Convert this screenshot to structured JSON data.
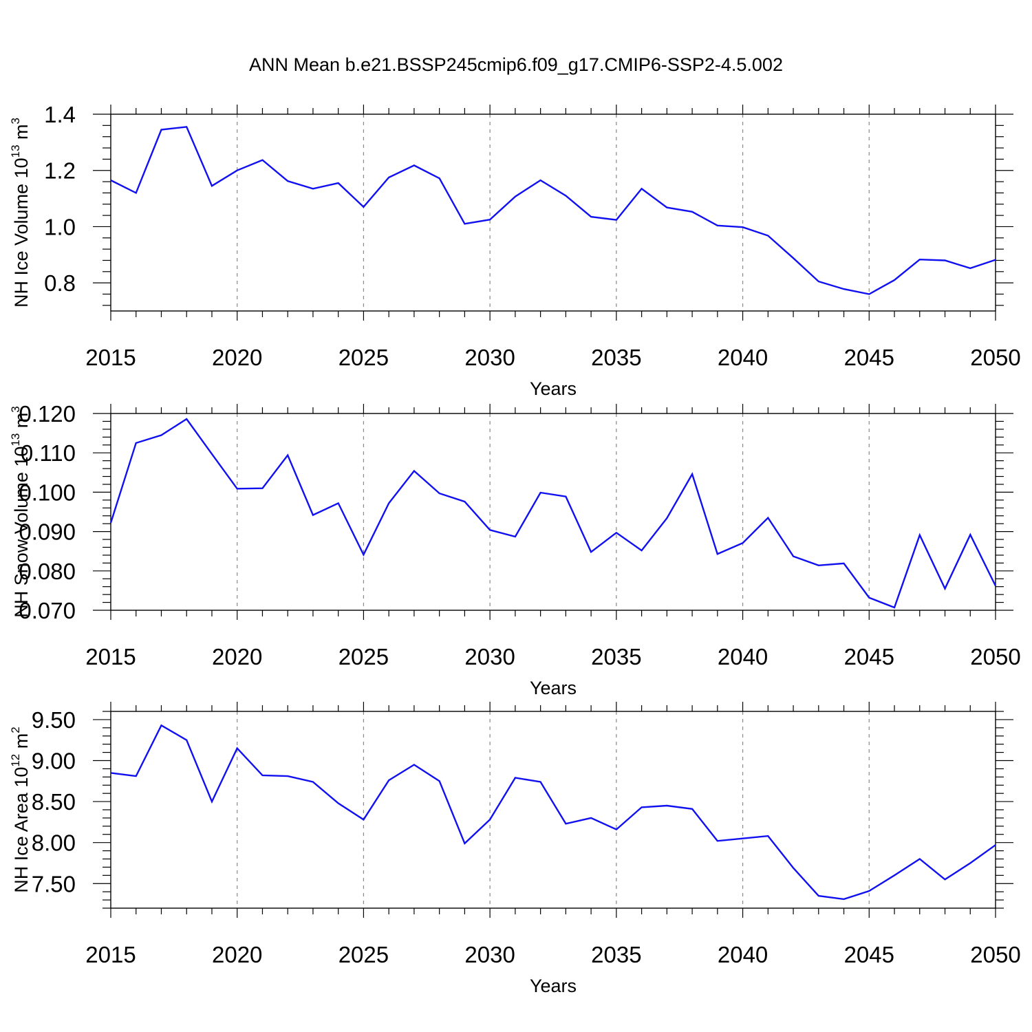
{
  "title": "ANN Mean b.e21.BSSP245cmip6.f09_g17.CMIP6-SSP2-4.5.002",
  "colors": {
    "line": "#1010f0",
    "axes": "#000000",
    "grid": "#888888"
  },
  "chart_data": [
    {
      "type": "line",
      "ylabel": "NH Ice Volume 10",
      "ylabel_exp": "13",
      "ylabel_unit": " m",
      "ylabel_unit_exp": "3",
      "xlabel": "Years",
      "xlim": [
        2015,
        2050
      ],
      "ylim": [
        0.7,
        1.4
      ],
      "xticks": [
        "2015",
        "2020",
        "2025",
        "2030",
        "2035",
        "2040",
        "2045",
        "2050"
      ],
      "yticks": [
        "0.8",
        "1.0",
        "1.2",
        "1.4"
      ],
      "grid": "vertical dashed",
      "x": [
        2015,
        2016,
        2017,
        2018,
        2019,
        2020,
        2021,
        2022,
        2023,
        2024,
        2025,
        2026,
        2027,
        2028,
        2029,
        2030,
        2031,
        2032,
        2033,
        2034,
        2035,
        2036,
        2037,
        2038,
        2039,
        2040,
        2041,
        2042,
        2043,
        2044,
        2045,
        2046,
        2047,
        2048,
        2049,
        2050
      ],
      "series": [
        {
          "values": [
            1.165,
            1.12,
            1.345,
            1.355,
            1.145,
            1.2,
            1.237,
            1.162,
            1.135,
            1.155,
            1.07,
            1.175,
            1.218,
            1.172,
            1.01,
            1.025,
            1.107,
            1.165,
            1.11,
            1.035,
            1.024,
            1.135,
            1.068,
            1.053,
            1.004,
            0.998,
            0.968,
            0.888,
            0.805,
            0.778,
            0.76,
            0.81,
            0.883,
            0.88,
            0.852,
            0.882
          ]
        }
      ]
    },
    {
      "type": "line",
      "ylabel": "NH Snow Volume 10",
      "ylabel_exp": "13",
      "ylabel_unit": " m",
      "ylabel_unit_exp": "3",
      "xlabel": "Years",
      "xlim": [
        2015,
        2050
      ],
      "ylim": [
        0.07,
        0.12
      ],
      "xticks": [
        "2015",
        "2020",
        "2025",
        "2030",
        "2035",
        "2040",
        "2045",
        "2050"
      ],
      "yticks": [
        "0.070",
        "0.080",
        "0.090",
        "0.100",
        "0.110",
        "0.120"
      ],
      "grid": "vertical dashed",
      "x": [
        2015,
        2016,
        2017,
        2018,
        2019,
        2020,
        2021,
        2022,
        2023,
        2024,
        2025,
        2026,
        2027,
        2028,
        2029,
        2030,
        2031,
        2032,
        2033,
        2034,
        2035,
        2036,
        2037,
        2038,
        2039,
        2040,
        2041,
        2042,
        2043,
        2044,
        2045,
        2046,
        2047,
        2048,
        2049,
        2050
      ],
      "series": [
        {
          "values": [
            0.0922,
            0.1125,
            0.1145,
            0.1186,
            0.1097,
            0.1009,
            0.101,
            0.1094,
            0.0942,
            0.0972,
            0.0841,
            0.0972,
            0.1054,
            0.0997,
            0.0976,
            0.0904,
            0.0887,
            0.0999,
            0.0989,
            0.0848,
            0.0897,
            0.0852,
            0.0934,
            0.1046,
            0.0843,
            0.0871,
            0.0935,
            0.0837,
            0.0814,
            0.0819,
            0.0732,
            0.0707,
            0.0891,
            0.0755,
            0.0892,
            0.0762
          ]
        }
      ]
    },
    {
      "type": "line",
      "ylabel": "NH Ice Area 10",
      "ylabel_exp": "12",
      "ylabel_unit": " m",
      "ylabel_unit_exp": "2",
      "xlabel": "Years",
      "xlim": [
        2015,
        2050
      ],
      "ylim": [
        7.2,
        9.6
      ],
      "xticks": [
        "2015",
        "2020",
        "2025",
        "2030",
        "2035",
        "2040",
        "2045",
        "2050"
      ],
      "yticks": [
        "7.50",
        "8.00",
        "8.50",
        "9.00",
        "9.50"
      ],
      "grid": "vertical dashed",
      "x": [
        2015,
        2016,
        2017,
        2018,
        2019,
        2020,
        2021,
        2022,
        2023,
        2024,
        2025,
        2026,
        2027,
        2028,
        2029,
        2030,
        2031,
        2032,
        2033,
        2034,
        2035,
        2036,
        2037,
        2038,
        2039,
        2040,
        2041,
        2042,
        2043,
        2044,
        2045,
        2046,
        2047,
        2048,
        2049,
        2050
      ],
      "series": [
        {
          "values": [
            8.85,
            8.81,
            9.43,
            9.25,
            8.5,
            9.15,
            8.82,
            8.81,
            8.74,
            8.48,
            8.28,
            8.76,
            8.95,
            8.75,
            7.99,
            8.28,
            8.79,
            8.74,
            8.23,
            8.3,
            8.16,
            8.43,
            8.45,
            8.41,
            8.02,
            8.05,
            8.08,
            7.69,
            7.35,
            7.31,
            7.41,
            7.6,
            7.8,
            7.55,
            7.75,
            7.97
          ]
        }
      ]
    }
  ]
}
